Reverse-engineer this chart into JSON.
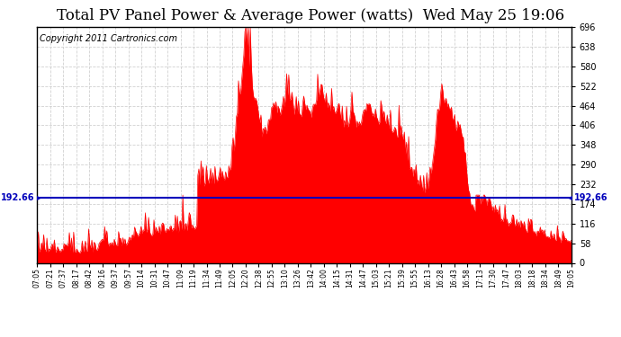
{
  "title": "Total PV Panel Power & Average Power (watts)  Wed May 25 19:06",
  "copyright": "Copyright 2011 Cartronics.com",
  "average_value": 192.66,
  "y_min": 0.0,
  "y_max": 696.0,
  "y_ticks": [
    0.0,
    58.0,
    116.0,
    174.0,
    232.0,
    290.0,
    348.0,
    406.0,
    464.0,
    522.0,
    580.0,
    638.0,
    696.0
  ],
  "bar_color": "#FF0000",
  "avg_line_color": "#0000BB",
  "background_color": "#FFFFFF",
  "grid_color": "#CCCCCC",
  "title_fontsize": 12,
  "copyright_fontsize": 7,
  "avg_label": "192.66",
  "x_labels": [
    "07:05",
    "07:21",
    "07:37",
    "08:17",
    "08:42",
    "09:16",
    "09:37",
    "09:57",
    "10:14",
    "10:31",
    "10:47",
    "11:09",
    "11:19",
    "11:34",
    "11:49",
    "12:05",
    "12:20",
    "12:38",
    "12:55",
    "13:10",
    "13:26",
    "13:42",
    "14:00",
    "14:15",
    "14:31",
    "14:47",
    "15:03",
    "15:21",
    "15:39",
    "15:55",
    "16:13",
    "16:28",
    "16:43",
    "16:58",
    "17:13",
    "17:30",
    "17:47",
    "18:03",
    "18:18",
    "18:34",
    "18:49",
    "19:05"
  ]
}
